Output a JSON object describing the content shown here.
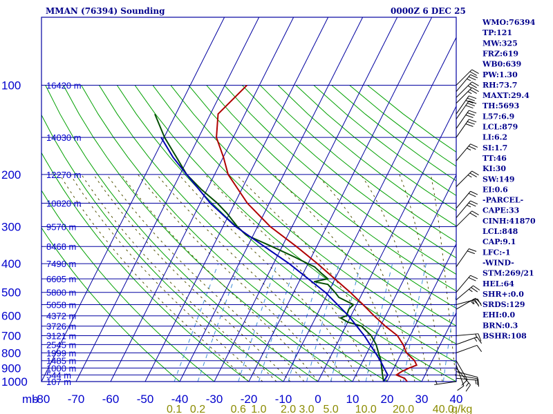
{
  "chart_data": {
    "type": "line",
    "title": "MMAN (76394) Sounding",
    "datetime": "0000Z  6 DEC 25",
    "xlabel": "mb",
    "pressure_levels": [
      100,
      200,
      300,
      400,
      500,
      600,
      700,
      800,
      900,
      1000
    ],
    "temp_ticks": [
      -80,
      -70,
      -60,
      -50,
      -40,
      -30,
      -20,
      -10,
      0,
      10,
      20,
      30,
      40
    ],
    "temp_tick_labels": [
      "-80",
      "-70",
      "-60",
      "-50",
      "-40",
      "-30",
      "-20",
      "-10",
      "0",
      "10",
      "20",
      "30",
      "40"
    ],
    "xlim": [
      -80,
      40
    ],
    "height_labels": [
      {
        "p": 100,
        "text": "16420 m"
      },
      {
        "p": 150,
        "text": "14030 m"
      },
      {
        "p": 200,
        "text": "12270 m"
      },
      {
        "p": 250,
        "text": "10820 m"
      },
      {
        "p": 300,
        "text": "9570 m"
      },
      {
        "p": 350,
        "text": "8468 m"
      },
      {
        "p": 400,
        "text": "7490 m"
      },
      {
        "p": 450,
        "text": "6605 m"
      },
      {
        "p": 500,
        "text": "5800 m"
      },
      {
        "p": 550,
        "text": "5058 m"
      },
      {
        "p": 600,
        "text": "4372 m"
      },
      {
        "p": 650,
        "text": "3726 m"
      },
      {
        "p": 700,
        "text": "3121 m"
      },
      {
        "p": 750,
        "text": "2545 m"
      },
      {
        "p": 800,
        "text": "1999 m"
      },
      {
        "p": 850,
        "text": "1485 m"
      },
      {
        "p": 900,
        "text": "1000 m"
      },
      {
        "p": 950,
        "text": "544 m"
      },
      {
        "p": 1000,
        "text": "107 m"
      }
    ],
    "mixing_ratio_labels": [
      {
        "w": 0.1,
        "text": "0.1"
      },
      {
        "w": 0.2,
        "text": "0.2"
      },
      {
        "w": 0.6,
        "text": "0.6"
      },
      {
        "w": 1.0,
        "text": "1.0"
      },
      {
        "w": 2.0,
        "text": "2.0"
      },
      {
        "w": 3.0,
        "text": "3.0"
      },
      {
        "w": 5.0,
        "text": "5.0"
      },
      {
        "w": 10.0,
        "text": "10.0"
      },
      {
        "w": 20.0,
        "text": "20.0"
      },
      {
        "w": 40.0,
        "text": "40.0"
      }
    ],
    "mixing_ratio_unit": "g/kg",
    "series": [
      {
        "name": "Temperature",
        "color": "#b00000",
        "points": [
          [
            1000,
            25.8
          ],
          [
            975,
            24.5
          ],
          [
            950,
            21.5
          ],
          [
            925,
            22.4
          ],
          [
            900,
            24.0
          ],
          [
            880,
            25.6
          ],
          [
            850,
            24.2
          ],
          [
            800,
            20.5
          ],
          [
            750,
            18.0
          ],
          [
            700,
            14.8
          ],
          [
            650,
            9.6
          ],
          [
            600,
            4.5
          ],
          [
            550,
            -0.7
          ],
          [
            500,
            -6.6
          ],
          [
            450,
            -13.5
          ],
          [
            400,
            -21.2
          ],
          [
            350,
            -30.4
          ],
          [
            300,
            -41.5
          ],
          [
            250,
            -52.3
          ],
          [
            200,
            -63.0
          ],
          [
            175,
            -67.4
          ],
          [
            150,
            -73.0
          ],
          [
            125,
            -76.7
          ],
          [
            100,
            -73.5
          ]
        ]
      },
      {
        "name": "Dewpoint",
        "color": "#004d00",
        "points": [
          [
            1000,
            19.0
          ],
          [
            950,
            17.5
          ],
          [
            900,
            16.0
          ],
          [
            850,
            14.5
          ],
          [
            800,
            12.4
          ],
          [
            750,
            10.2
          ],
          [
            700,
            7.2
          ],
          [
            650,
            2.7
          ],
          [
            630,
            -2.0
          ],
          [
            610,
            -4.8
          ],
          [
            600,
            -3.5
          ],
          [
            570,
            -4.0
          ],
          [
            550,
            -3.5
          ],
          [
            520,
            -9.0
          ],
          [
            500,
            -11.0
          ],
          [
            470,
            -14.5
          ],
          [
            460,
            -19.0
          ],
          [
            450,
            -15.5
          ],
          [
            430,
            -18.5
          ],
          [
            410,
            -21.5
          ],
          [
            400,
            -24.0
          ],
          [
            380,
            -29.0
          ],
          [
            350,
            -37.5
          ],
          [
            320,
            -47.0
          ],
          [
            300,
            -51.0
          ],
          [
            270,
            -56.5
          ],
          [
            250,
            -61.0
          ],
          [
            225,
            -68.0
          ],
          [
            200,
            -75.0
          ],
          [
            175,
            -81.0
          ],
          [
            150,
            -88.0
          ],
          [
            125,
            -95.0
          ]
        ]
      },
      {
        "name": "Parcel",
        "color": "#0000b0",
        "points": [
          [
            1000,
            19.0
          ],
          [
            950,
            19.0
          ],
          [
            900,
            16.7
          ],
          [
            850,
            14.3
          ],
          [
            800,
            11.5
          ],
          [
            700,
            5.2
          ],
          [
            600,
            -2.9
          ],
          [
            500,
            -13.8
          ],
          [
            400,
            -29.4
          ],
          [
            300,
            -51.5
          ],
          [
            250,
            -63.0
          ],
          [
            200,
            -75.0
          ],
          [
            175,
            -82.0
          ],
          [
            150,
            -89.0
          ]
        ]
      }
    ],
    "wind_barbs": [
      {
        "p": 1000,
        "dir": 262,
        "spd": 5
      },
      {
        "p": 975,
        "dir": 95,
        "spd": 5
      },
      {
        "p": 950,
        "dir": 100,
        "spd": 10
      },
      {
        "p": 925,
        "dir": 105,
        "spd": 10
      },
      {
        "p": 900,
        "dir": 140,
        "spd": 15
      },
      {
        "p": 880,
        "dir": 160,
        "spd": 10
      },
      {
        "p": 850,
        "dir": 150,
        "spd": 10
      },
      {
        "p": 800,
        "dir": 70,
        "spd": 10
      },
      {
        "p": 750,
        "dir": 70,
        "spd": 15
      },
      {
        "p": 700,
        "dir": 85,
        "spd": 15
      },
      {
        "p": 570,
        "dir": 60,
        "spd": 25
      },
      {
        "p": 550,
        "dir": 75,
        "spd": 25
      },
      {
        "p": 530,
        "dir": 50,
        "spd": 25
      },
      {
        "p": 500,
        "dir": 40,
        "spd": 20
      },
      {
        "p": 410,
        "dir": 35,
        "spd": 20
      },
      {
        "p": 300,
        "dir": 45,
        "spd": 20
      },
      {
        "p": 280,
        "dir": 40,
        "spd": 25
      },
      {
        "p": 260,
        "dir": 40,
        "spd": 20
      },
      {
        "p": 220,
        "dir": 45,
        "spd": 25
      },
      {
        "p": 180,
        "dir": 40,
        "spd": 25
      },
      {
        "p": 150,
        "dir": 35,
        "spd": 30
      },
      {
        "p": 140,
        "dir": 35,
        "spd": 30
      },
      {
        "p": 130,
        "dir": 35,
        "spd": 30
      },
      {
        "p": 125,
        "dir": 35,
        "spd": 30
      },
      {
        "p": 115,
        "dir": 45,
        "spd": 25
      },
      {
        "p": 110,
        "dir": 45,
        "spd": 25
      },
      {
        "p": 105,
        "dir": 40,
        "spd": 25
      },
      {
        "p": 100,
        "dir": 45,
        "spd": 20
      }
    ]
  },
  "stats": [
    "WMO:76394",
    "TP:121",
    "MW:325",
    "FRZ:619",
    "WB0:639",
    "PW:1.30",
    "RH:73.7",
    "MAXT:29.4",
    "TH:5693",
    "L57:6.9",
    "LCL:879",
    "LI:6.2",
    "SI:1.7",
    "TT:46",
    "KI:30",
    "SW:149",
    "EI:0.6",
    "-PARCEL-",
    "CAPE:33",
    "CINH:41870",
    "LCL:848",
    "CAP:9.1",
    "LFC:-1",
    "-WIND-",
    "STM:269/21",
    "HEL:64",
    "SHR+:0.0",
    "SRDS:129",
    "EHI:0.0",
    "BRN:0.3",
    "BSHR:108"
  ],
  "colors": {
    "grid": "#0000a0",
    "dry_adiabat": "#00a000",
    "moist_adiabat": "#505000",
    "mixing_ratio": "#3c8cd8",
    "temperature": "#b00000",
    "dewpoint": "#004d00",
    "parcel": "#0000b0"
  }
}
